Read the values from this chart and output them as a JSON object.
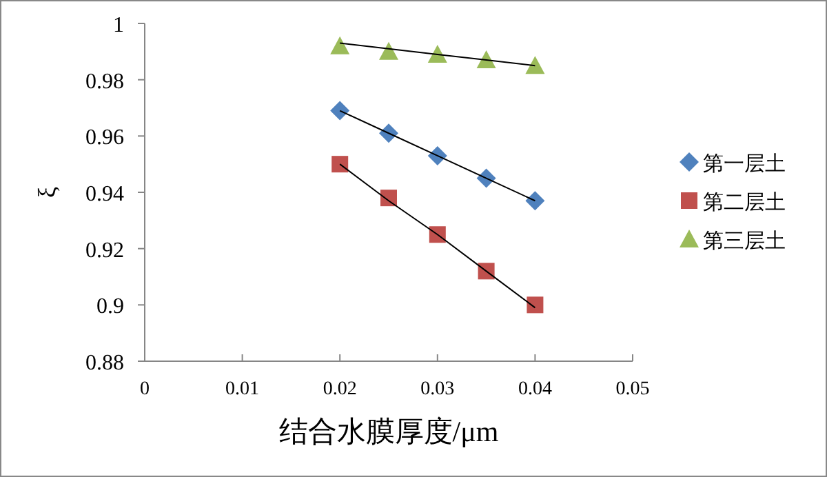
{
  "chart_data": {
    "type": "scatter",
    "xlabel": "结合水膜厚度/μm",
    "ylabel": "ξ",
    "xlim": [
      0,
      0.05
    ],
    "ylim": [
      0.88,
      1
    ],
    "xticks": [
      0,
      0.01,
      0.02,
      0.03,
      0.04,
      0.05
    ],
    "yticks": [
      0.88,
      0.9,
      0.92,
      0.94,
      0.96,
      0.98,
      1
    ],
    "grid": false,
    "legend": "right",
    "x": [
      0.02,
      0.025,
      0.03,
      0.035,
      0.04
    ],
    "series": [
      {
        "name": "第一层土",
        "color": "#4f81bd",
        "marker": "diamond",
        "values": [
          0.969,
          0.961,
          0.953,
          0.945,
          0.937
        ]
      },
      {
        "name": "第二层土",
        "color": "#c0504d",
        "marker": "square",
        "values": [
          0.95,
          0.938,
          0.925,
          0.912,
          0.9
        ]
      },
      {
        "name": "第三层土",
        "color": "#9bbb59",
        "marker": "triangle",
        "values": [
          0.992,
          0.99,
          0.989,
          0.987,
          0.985
        ]
      },
      {
        "type": "line",
        "color": "#000000",
        "marker": "none",
        "values": [
          0.969,
          0.961,
          0.953,
          0.945,
          0.937
        ]
      },
      {
        "type": "line",
        "color": "#000000",
        "marker": "none",
        "values": [
          0.95,
          0.937,
          0.925,
          0.912,
          0.899
        ]
      },
      {
        "type": "line",
        "color": "#000000",
        "marker": "none",
        "values": [
          0.993,
          0.991,
          0.989,
          0.987,
          0.985
        ]
      }
    ]
  }
}
